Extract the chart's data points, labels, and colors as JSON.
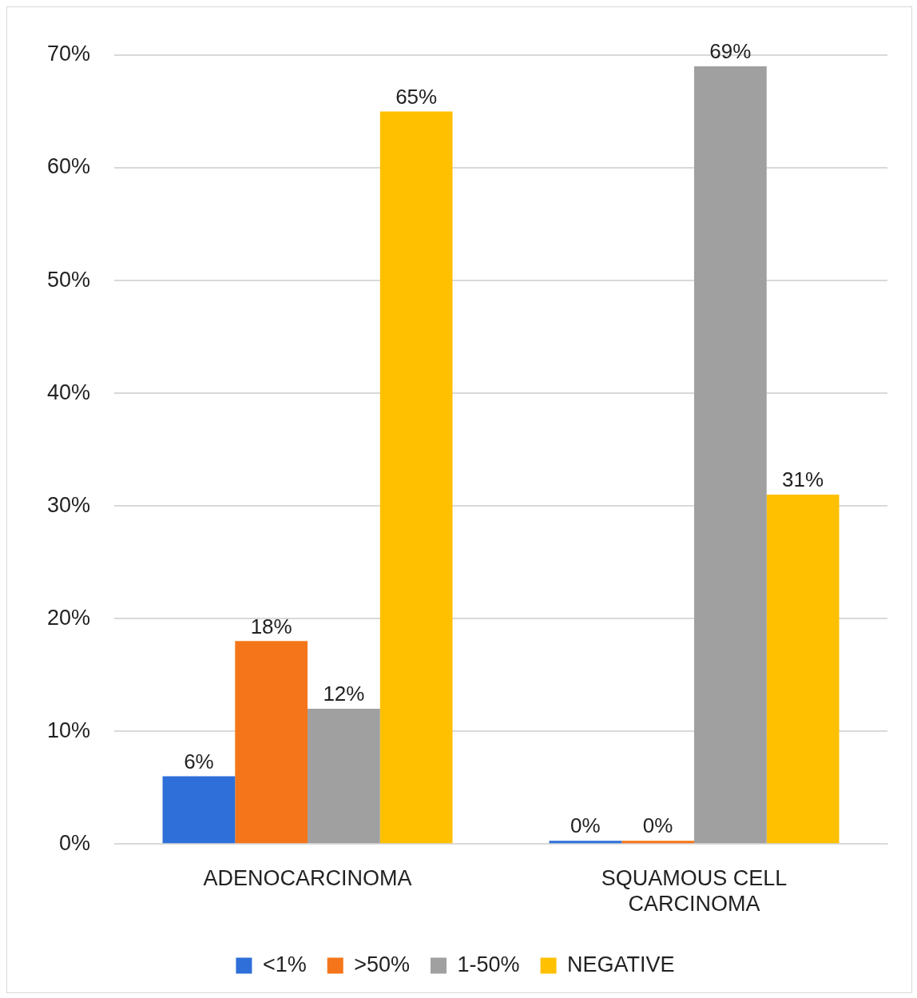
{
  "chart_data": {
    "type": "bar",
    "categories": [
      "ADENOCARCINOMA",
      "SQUAMOUS CELL CARCINOMA"
    ],
    "series": [
      {
        "name": "<1%",
        "color": "#2e6fd9",
        "values": [
          6,
          0
        ],
        "value_labels": [
          "6%",
          "0%"
        ]
      },
      {
        "name": ">50%",
        "color": "#f5761a",
        "values": [
          18,
          0
        ],
        "value_labels": [
          "18%",
          "0%"
        ]
      },
      {
        "name": "1-50%",
        "color": "#a0a0a0",
        "values": [
          12,
          69
        ],
        "value_labels": [
          "12%",
          "69%"
        ]
      },
      {
        "name": "NEGATIVE",
        "color": "#ffc000",
        "values": [
          65,
          31
        ],
        "value_labels": [
          "65%",
          "31%"
        ]
      }
    ],
    "ylim": [
      0,
      70
    ],
    "yticks": [
      {
        "value": 0,
        "label": "0%"
      },
      {
        "value": 10,
        "label": "10%"
      },
      {
        "value": 20,
        "label": "20%"
      },
      {
        "value": 30,
        "label": "30%"
      },
      {
        "value": 40,
        "label": "40%"
      },
      {
        "value": 50,
        "label": "50%"
      },
      {
        "value": 60,
        "label": "60%"
      },
      {
        "value": 70,
        "label": "70%"
      }
    ],
    "grid": "y",
    "legend": "bottom"
  }
}
